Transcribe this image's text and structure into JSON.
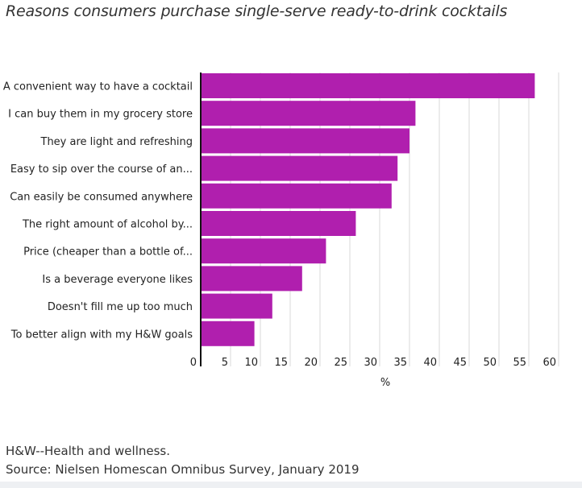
{
  "chart_data": {
    "type": "bar",
    "orientation": "horizontal",
    "title": "Reasons consumers purchase single-serve ready-to-drink cocktails",
    "categories": [
      "A convenient way to have a cocktail",
      "I can buy them in my grocery store",
      "They are light and refreshing",
      "Easy to sip over the course of an...",
      "Can easily be consumed anywhere",
      "The right amount of alcohol by...",
      "Price (cheaper than a bottle of...",
      "Is a beverage everyone likes",
      "Doesn't fill me up too much",
      "To better align with my H&W goals"
    ],
    "values": [
      56,
      36,
      35,
      33,
      32,
      26,
      21,
      17,
      12,
      9
    ],
    "xlabel": "%",
    "ylabel": "",
    "xlim": [
      0,
      60
    ],
    "xticks": [
      "0",
      "5",
      "10",
      "15",
      "20",
      "25",
      "30",
      "35",
      "40",
      "45",
      "50",
      "55",
      "60"
    ],
    "grid": true,
    "bar_color": "#b01fae"
  },
  "footnote": "H&W--Health and wellness.",
  "source": "Source: Nielsen Homescan Omnibus Survey, January 2019"
}
